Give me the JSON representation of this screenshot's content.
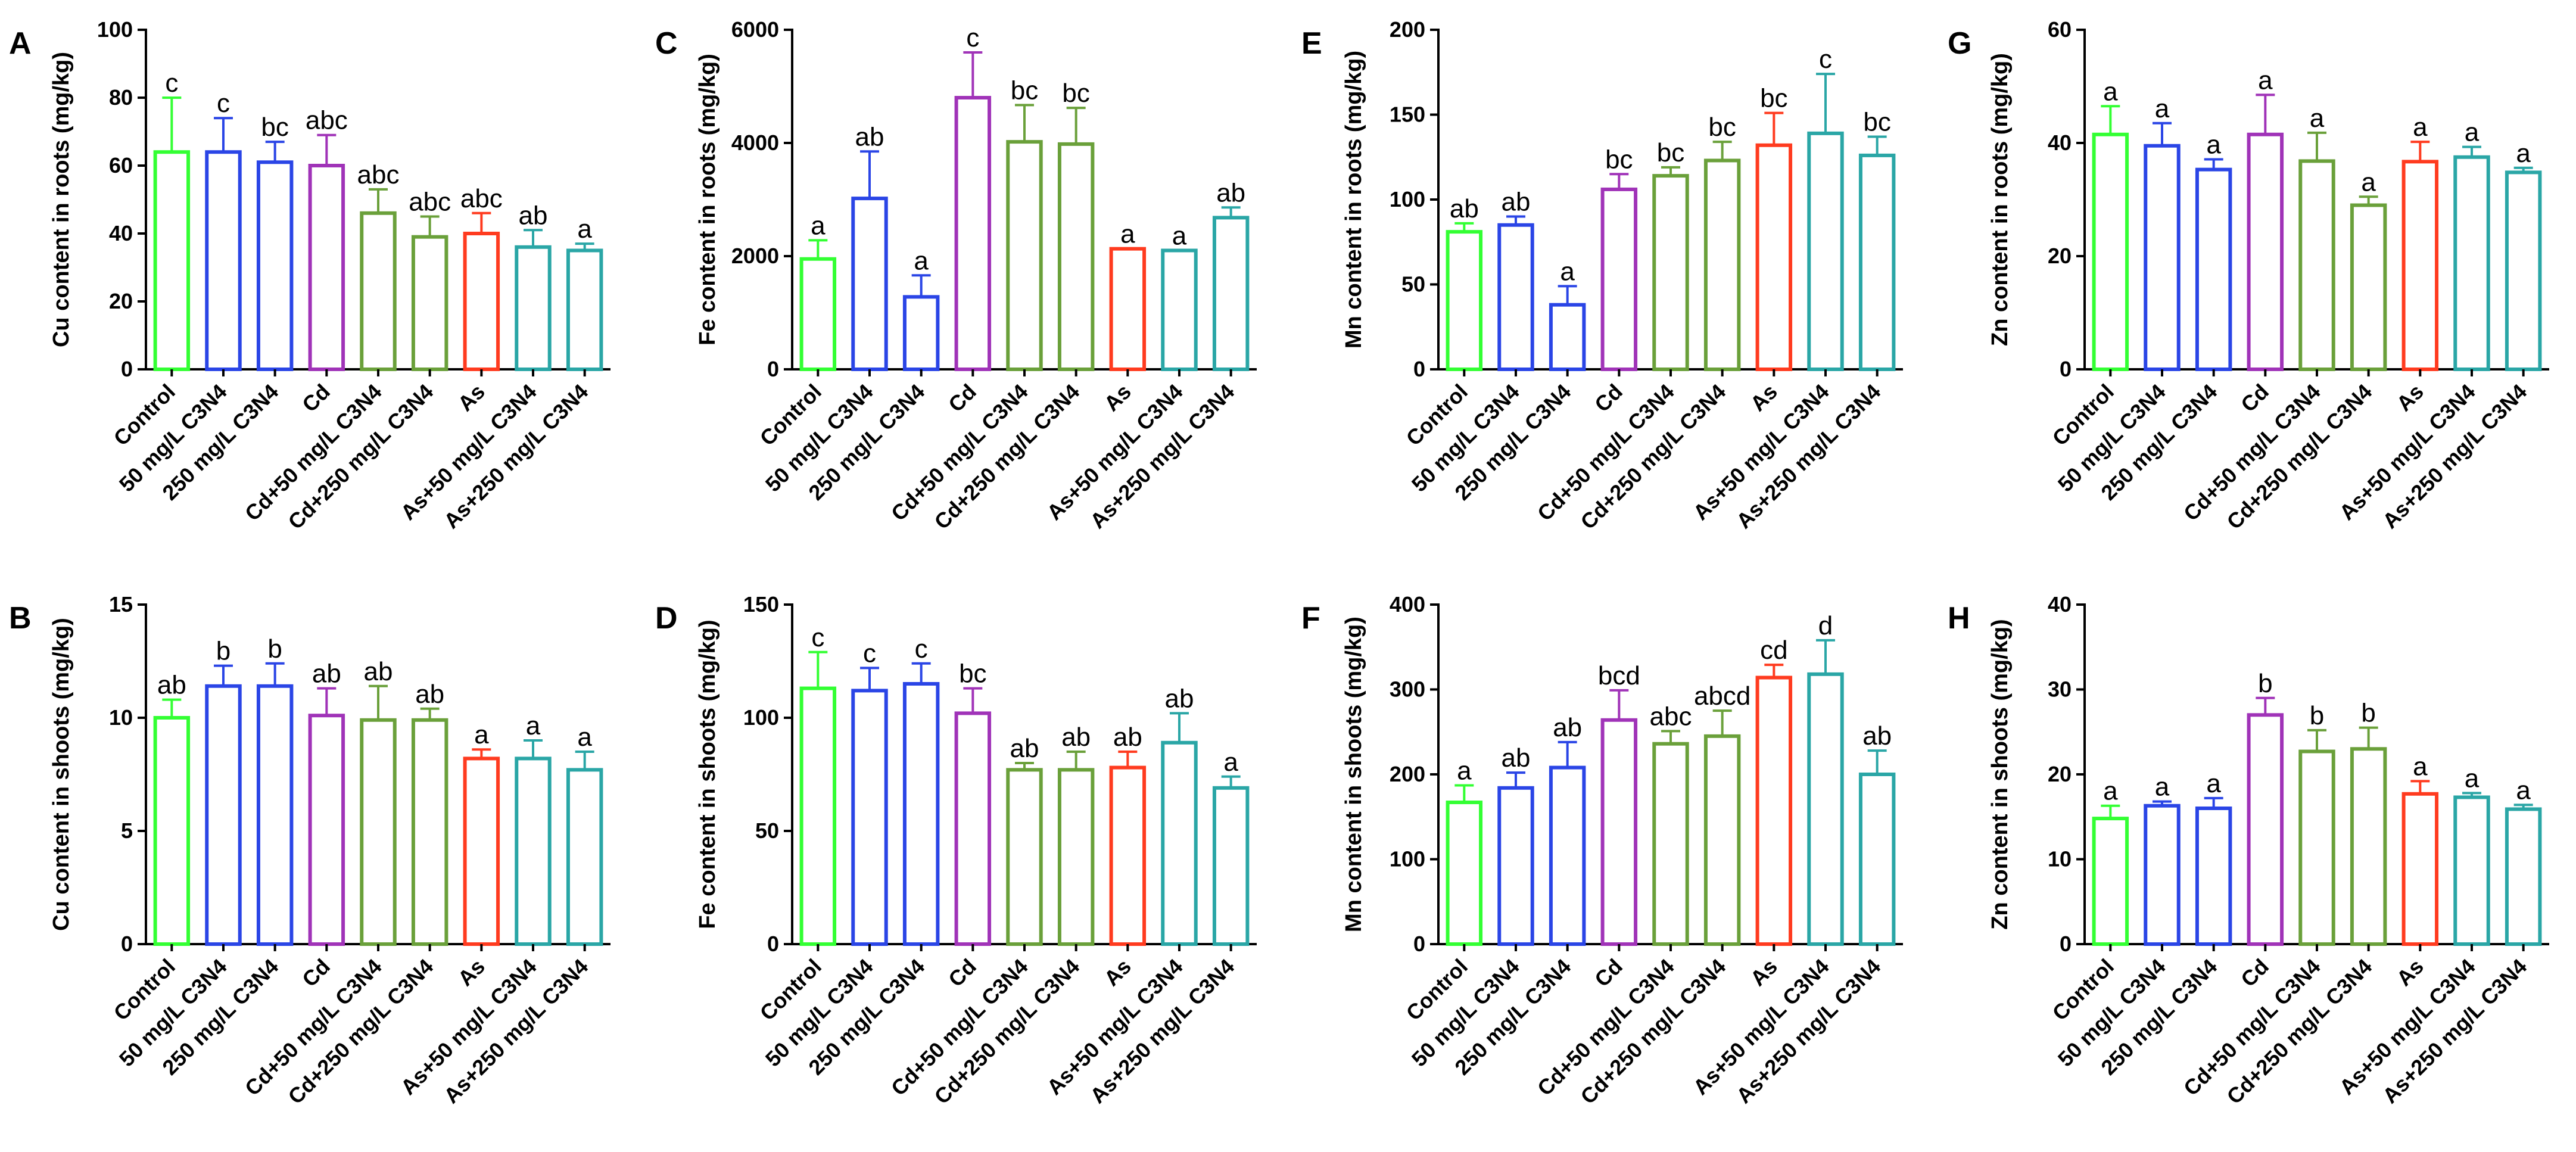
{
  "figure": {
    "categories": [
      "Control",
      "50 mg/L C3N4",
      "250 mg/L C3N4",
      "Cd",
      "Cd+50 mg/L C3N4",
      "Cd+250 mg/L C3N4",
      "As",
      "As+50 mg/L C3N4",
      "As+250 mg/L C3N4"
    ],
    "bar_colors": [
      "#33ff33",
      "#2a45e6",
      "#2a45e6",
      "#a033b8",
      "#6aa03a",
      "#6aa03a",
      "#ff3b1f",
      "#2aa6a6",
      "#2aa6a6"
    ]
  },
  "chart_data": [
    {
      "panel": "A",
      "type": "bar",
      "ylabel": "Cu content in roots (mg/kg)",
      "ylim": [
        0,
        100
      ],
      "yticks": [
        0,
        20,
        40,
        60,
        80,
        100
      ],
      "values": [
        64,
        64,
        61,
        60,
        46,
        39,
        40,
        36,
        35
      ],
      "errors": [
        16,
        10,
        6,
        9,
        7,
        6,
        6,
        5,
        2
      ],
      "labels": [
        "c",
        "c",
        "bc",
        "abc",
        "abc",
        "abc",
        "abc",
        "ab",
        "a"
      ]
    },
    {
      "panel": "C",
      "type": "bar",
      "ylabel": "Fe content in roots (mg/kg)",
      "ylim": [
        0,
        6000
      ],
      "yticks": [
        0,
        2000,
        4000,
        6000
      ],
      "values": [
        1950,
        3020,
        1280,
        4800,
        4020,
        3980,
        2130,
        2100,
        2680
      ],
      "errors": [
        330,
        830,
        380,
        800,
        650,
        640,
        0,
        0,
        180
      ],
      "labels": [
        "a",
        "ab",
        "a",
        "c",
        "bc",
        "bc",
        "a",
        "a",
        "ab"
      ]
    },
    {
      "panel": "E",
      "type": "bar",
      "ylabel": "Mn content in roots (mg/kg)",
      "ylim": [
        0,
        200
      ],
      "yticks": [
        0,
        50,
        100,
        150,
        200
      ],
      "values": [
        81,
        85,
        38,
        106,
        114,
        123,
        132,
        139,
        126
      ],
      "errors": [
        5,
        5,
        11,
        9,
        5,
        11,
        19,
        35,
        11
      ],
      "labels": [
        "ab",
        "ab",
        "a",
        "bc",
        "bc",
        "bc",
        "bc",
        "c",
        "bc"
      ]
    },
    {
      "panel": "G",
      "type": "bar",
      "ylabel": "Zn content in roots (mg/kg)",
      "ylim": [
        0,
        60
      ],
      "yticks": [
        0,
        20,
        40,
        60
      ],
      "values": [
        41.5,
        39.5,
        35.3,
        41.5,
        36.8,
        29,
        36.7,
        37.5,
        34.8
      ],
      "errors": [
        5,
        4,
        1.8,
        7,
        5,
        1.5,
        3.5,
        1.8,
        0.8
      ],
      "labels": [
        "a",
        "a",
        "a",
        "a",
        "a",
        "a",
        "a",
        "a",
        "a"
      ]
    },
    {
      "panel": "B",
      "type": "bar",
      "ylabel": "Cu content in shoots (mg/kg)",
      "ylim": [
        0,
        15
      ],
      "yticks": [
        0,
        5,
        10,
        15
      ],
      "values": [
        10.0,
        11.4,
        11.4,
        10.1,
        9.9,
        9.9,
        8.2,
        8.2,
        7.7
      ],
      "errors": [
        0.8,
        0.9,
        1.0,
        1.2,
        1.5,
        0.5,
        0.4,
        0.8,
        0.8
      ],
      "labels": [
        "ab",
        "b",
        "b",
        "ab",
        "ab",
        "ab",
        "a",
        "a",
        "a"
      ]
    },
    {
      "panel": "D",
      "type": "bar",
      "ylabel": "Fe content in shoots (mg/kg)",
      "ylim": [
        0,
        150
      ],
      "yticks": [
        0,
        50,
        100,
        150
      ],
      "values": [
        113,
        112,
        115,
        102,
        77,
        77,
        78,
        89,
        69
      ],
      "errors": [
        16,
        10,
        9,
        11,
        3,
        8,
        7,
        13,
        5
      ],
      "labels": [
        "c",
        "c",
        "c",
        "bc",
        "ab",
        "ab",
        "ab",
        "ab",
        "a"
      ]
    },
    {
      "panel": "F",
      "type": "bar",
      "ylabel": "Mn content in shoots (mg/kg)",
      "ylim": [
        0,
        400
      ],
      "yticks": [
        0,
        100,
        200,
        300,
        400
      ],
      "values": [
        167,
        184,
        208,
        264,
        236,
        245,
        314,
        318,
        200
      ],
      "errors": [
        20,
        18,
        30,
        35,
        15,
        30,
        15,
        40,
        28
      ],
      "labels": [
        "a",
        "ab",
        "ab",
        "bcd",
        "abc",
        "abcd",
        "cd",
        "d",
        "ab"
      ]
    },
    {
      "panel": "H",
      "type": "bar",
      "ylabel": "Zn content in shoots (mg/kg)",
      "ylim": [
        0,
        40
      ],
      "yticks": [
        0,
        10,
        20,
        30,
        40
      ],
      "values": [
        14.8,
        16.3,
        16.0,
        27.0,
        22.7,
        23.0,
        17.7,
        17.3,
        15.9
      ],
      "errors": [
        1.5,
        0.5,
        1.2,
        2.0,
        2.5,
        2.5,
        1.5,
        0.5,
        0.5
      ],
      "labels": [
        "a",
        "a",
        "a",
        "b",
        "b",
        "b",
        "a",
        "a",
        "a"
      ]
    }
  ]
}
